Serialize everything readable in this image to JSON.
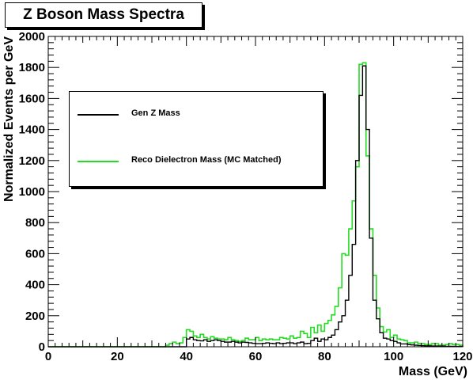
{
  "chart_data": {
    "type": "line",
    "title": "Z Boson Mass Spectra",
    "xlabel": "Mass (GeV)",
    "ylabel": "Normalized Events per GeV",
    "xlim": [
      0,
      120
    ],
    "ylim": [
      0,
      2000
    ],
    "x_ticks": [
      "0",
      "20",
      "40",
      "60",
      "80",
      "100",
      "120"
    ],
    "y_ticks": [
      "0",
      "200",
      "400",
      "600",
      "800",
      "1000",
      "1200",
      "1400",
      "1600",
      "1800",
      "2000"
    ],
    "grid": false,
    "legend_position": "top-left",
    "bin_width": 1,
    "x_bin_edges": [
      0,
      1,
      2,
      3,
      4,
      5,
      6,
      7,
      8,
      9,
      10,
      11,
      12,
      13,
      14,
      15,
      16,
      17,
      18,
      19,
      20,
      21,
      22,
      23,
      24,
      25,
      26,
      27,
      28,
      29,
      30,
      31,
      32,
      33,
      34,
      35,
      36,
      37,
      38,
      39,
      40,
      41,
      42,
      43,
      44,
      45,
      46,
      47,
      48,
      49,
      50,
      51,
      52,
      53,
      54,
      55,
      56,
      57,
      58,
      59,
      60,
      61,
      62,
      63,
      64,
      65,
      66,
      67,
      68,
      69,
      70,
      71,
      72,
      73,
      74,
      75,
      76,
      77,
      78,
      79,
      80,
      81,
      82,
      83,
      84,
      85,
      86,
      87,
      88,
      89,
      90,
      91,
      92,
      93,
      94,
      95,
      96,
      97,
      98,
      99,
      100,
      101,
      102,
      103,
      104,
      105,
      106,
      107,
      108,
      109,
      110,
      111,
      112,
      113,
      114,
      115,
      116,
      117,
      118,
      119,
      120
    ],
    "series": [
      {
        "name": "Gen Z Mass",
        "color": "#000000",
        "values": [
          0,
          0,
          0,
          0,
          0,
          0,
          0,
          0,
          0,
          0,
          0,
          0,
          0,
          0,
          0,
          0,
          0,
          0,
          0,
          0,
          0,
          0,
          0,
          0,
          0,
          0,
          0,
          0,
          0,
          0,
          0,
          0,
          0,
          0,
          0,
          0,
          0,
          0,
          0,
          0,
          50,
          60,
          45,
          40,
          38,
          45,
          35,
          40,
          45,
          40,
          35,
          30,
          30,
          35,
          30,
          25,
          30,
          28,
          25,
          22,
          20,
          20,
          22,
          25,
          22,
          20,
          25,
          20,
          22,
          25,
          25,
          20,
          25,
          30,
          20,
          22,
          40,
          55,
          35,
          50,
          45,
          60,
          75,
          110,
          160,
          200,
          300,
          460,
          660,
          1200,
          1620,
          1810,
          1400,
          700,
          300,
          180,
          90,
          55,
          50,
          40,
          35,
          25,
          18,
          18,
          14,
          12,
          10,
          8,
          7,
          6,
          6,
          5,
          5,
          4,
          4,
          3,
          3,
          3,
          2,
          2
        ]
      },
      {
        "name": "Reco Dielectron Mass (MC Matched)",
        "color": "#22dd22",
        "values": [
          0,
          0,
          0,
          0,
          0,
          0,
          0,
          0,
          0,
          0,
          0,
          0,
          0,
          0,
          0,
          0,
          0,
          0,
          0,
          0,
          0,
          0,
          0,
          0,
          0,
          0,
          0,
          0,
          0,
          0,
          0,
          0,
          0,
          0,
          10,
          20,
          30,
          20,
          25,
          60,
          110,
          100,
          70,
          60,
          80,
          60,
          50,
          65,
          55,
          50,
          50,
          45,
          60,
          45,
          40,
          35,
          40,
          55,
          45,
          45,
          60,
          40,
          50,
          45,
          50,
          45,
          45,
          60,
          55,
          50,
          70,
          55,
          60,
          100,
          85,
          60,
          125,
          90,
          140,
          100,
          150,
          170,
          205,
          260,
          380,
          600,
          590,
          760,
          940,
          1160,
          1820,
          1830,
          1230,
          760,
          460,
          250,
          130,
          95,
          110,
          60,
          75,
          50,
          45,
          40,
          25,
          25,
          30,
          20,
          20,
          15,
          15,
          20,
          20,
          10,
          10,
          15,
          20,
          15,
          15,
          10
        ]
      }
    ]
  }
}
